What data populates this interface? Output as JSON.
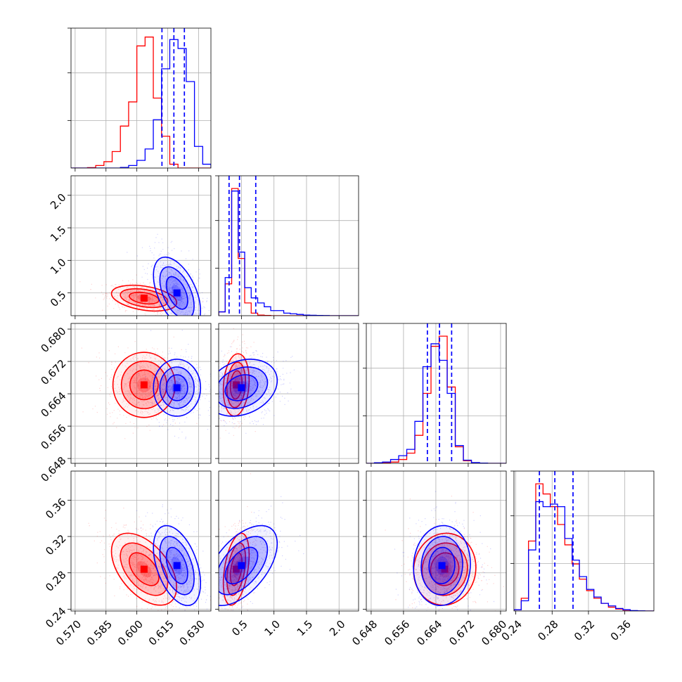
{
  "chart_data": {
    "type": "corner",
    "grid": true,
    "series": [
      {
        "color": "#ff0000",
        "params": [
          {
            "mu": 0.6035,
            "sd": 0.0072
          },
          {
            "mu": 0.42,
            "sd": 0.09
          },
          {
            "mu": 0.6662,
            "sd": 0.0035
          },
          {
            "mu": 0.284,
            "sd": 0.018
          }
        ],
        "corr": [
          [
            0,
            1,
            -0.35
          ],
          [
            0,
            2,
            0.0
          ],
          [
            0,
            3,
            -0.5
          ],
          [
            1,
            2,
            0.15
          ],
          [
            1,
            3,
            0.4
          ],
          [
            2,
            3,
            0.05
          ]
        ],
        "contour_sizes": [
          [
            0.6,
            0.6
          ],
          [
            1.1,
            1.1
          ],
          [
            1.6,
            1.6
          ]
        ]
      },
      {
        "color": "#0000ff",
        "params": [
          {
            "mu": 0.6195,
            "sd": 0.0052
          },
          {
            "mu": 0.5,
            "sd": 0.25
          },
          {
            "mu": 0.6655,
            "sd": 0.0032
          },
          {
            "mu": 0.288,
            "sd": 0.02
          }
        ],
        "corr": [
          [
            0,
            1,
            -0.5
          ],
          [
            0,
            2,
            0.0
          ],
          [
            0,
            3,
            -0.45
          ],
          [
            1,
            2,
            0.25
          ],
          [
            1,
            3,
            0.55
          ],
          [
            2,
            3,
            0.05
          ]
        ],
        "contour_sizes": [
          [
            0.6,
            0.6
          ],
          [
            1.1,
            1.1
          ],
          [
            1.6,
            1.6
          ]
        ]
      }
    ],
    "quantiles": [
      [
        0.6122,
        0.618,
        0.6231
      ],
      [
        0.31,
        0.47,
        0.72
      ],
      [
        0.6619,
        0.6649,
        0.6679
      ],
      [
        0.266,
        0.283,
        0.303
      ]
    ],
    "axes": [
      {
        "range": [
          0.568,
          0.636
        ],
        "ticks": [
          "0.570",
          "0.585",
          "0.600",
          "0.615",
          "0.630"
        ],
        "tick_values": [
          0.57,
          0.585,
          0.6,
          0.615,
          0.63
        ]
      },
      {
        "range": [
          0.15,
          2.3
        ],
        "ticks": [
          "0.5",
          "1.0",
          "1.5",
          "2.0"
        ],
        "tick_values": [
          0.5,
          1.0,
          1.5,
          2.0
        ]
      },
      {
        "range": [
          0.6468,
          0.6814
        ],
        "ticks": [
          "0.648",
          "0.656",
          "0.664",
          "0.672",
          "0.680"
        ],
        "tick_values": [
          0.648,
          0.656,
          0.664,
          0.672,
          0.68
        ]
      },
      {
        "range": [
          0.238,
          0.392
        ],
        "ticks": [
          "0.24",
          "0.28",
          "0.32",
          "0.36"
        ],
        "tick_values": [
          0.24,
          0.28,
          0.32,
          0.36
        ]
      }
    ],
    "marginal": [
      {
        "bins": [
          0.568,
          0.572,
          0.576,
          0.58,
          0.584,
          0.588,
          0.592,
          0.596,
          0.6,
          0.604,
          0.608,
          0.612,
          0.616,
          0.62,
          0.624,
          0.628,
          0.632,
          0.636
        ],
        "red": [
          0,
          0,
          0.003,
          0.02,
          0.05,
          0.13,
          0.33,
          0.52,
          0.96,
          1.03,
          0.55,
          0.25,
          0.03,
          0.0,
          0.0,
          0,
          0
        ],
        "blue": [
          0,
          0,
          0,
          0,
          0,
          0,
          0.005,
          0.02,
          0.06,
          0.15,
          0.38,
          0.78,
          1.01,
          0.94,
          0.68,
          0.17,
          0.03
        ]
      },
      {
        "bins": [
          0.15,
          0.25,
          0.35,
          0.45,
          0.55,
          0.65,
          0.75,
          0.85,
          0.95,
          1.05,
          1.15,
          1.25,
          1.35,
          1.45,
          1.55,
          1.65,
          1.75,
          1.85,
          1.95,
          2.05,
          2.15,
          2.3
        ],
        "red": [
          0.03,
          0.25,
          1.0,
          0.45,
          0.1,
          0.02,
          0.005,
          0.002,
          0,
          0,
          0,
          0,
          0,
          0,
          0,
          0,
          0,
          0,
          0,
          0,
          0
        ],
        "blue": [
          0.03,
          0.3,
          0.98,
          0.5,
          0.22,
          0.14,
          0.1,
          0.07,
          0.04,
          0.04,
          0.02,
          0.015,
          0.01,
          0.005,
          0.003,
          0.002,
          0.001,
          0,
          0,
          0,
          0
        ]
      },
      {
        "bins": [
          0.6468,
          0.6488,
          0.6508,
          0.6528,
          0.6548,
          0.6568,
          0.6588,
          0.6608,
          0.6628,
          0.6648,
          0.6668,
          0.6688,
          0.6708,
          0.6728,
          0.6748,
          0.6768,
          0.6788,
          0.6814
        ],
        "red": [
          0,
          0,
          0.005,
          0.01,
          0.03,
          0.08,
          0.22,
          0.55,
          0.92,
          1.0,
          0.6,
          0.13,
          0.02,
          0.005,
          0.002,
          0,
          0
        ],
        "blue": [
          0,
          0.005,
          0.01,
          0.03,
          0.06,
          0.11,
          0.33,
          0.76,
          0.94,
          0.81,
          0.55,
          0.14,
          0.025,
          0.006,
          0.002,
          0,
          0
        ]
      },
      {
        "bins": [
          0.238,
          0.246,
          0.254,
          0.262,
          0.27,
          0.278,
          0.286,
          0.294,
          0.302,
          0.31,
          0.318,
          0.326,
          0.334,
          0.342,
          0.35,
          0.358,
          0.366,
          0.374,
          0.382,
          0.392
        ],
        "red": [
          0.01,
          0.1,
          0.55,
          1.0,
          0.92,
          0.82,
          0.68,
          0.52,
          0.37,
          0.25,
          0.16,
          0.1,
          0.06,
          0.03,
          0.015,
          0.007,
          0.002,
          0,
          0
        ],
        "blue": [
          0.01,
          0.08,
          0.48,
          0.86,
          0.82,
          0.84,
          0.82,
          0.57,
          0.4,
          0.27,
          0.17,
          0.11,
          0.06,
          0.04,
          0.02,
          0.01,
          0.003,
          0.001,
          0
        ]
      }
    ]
  }
}
